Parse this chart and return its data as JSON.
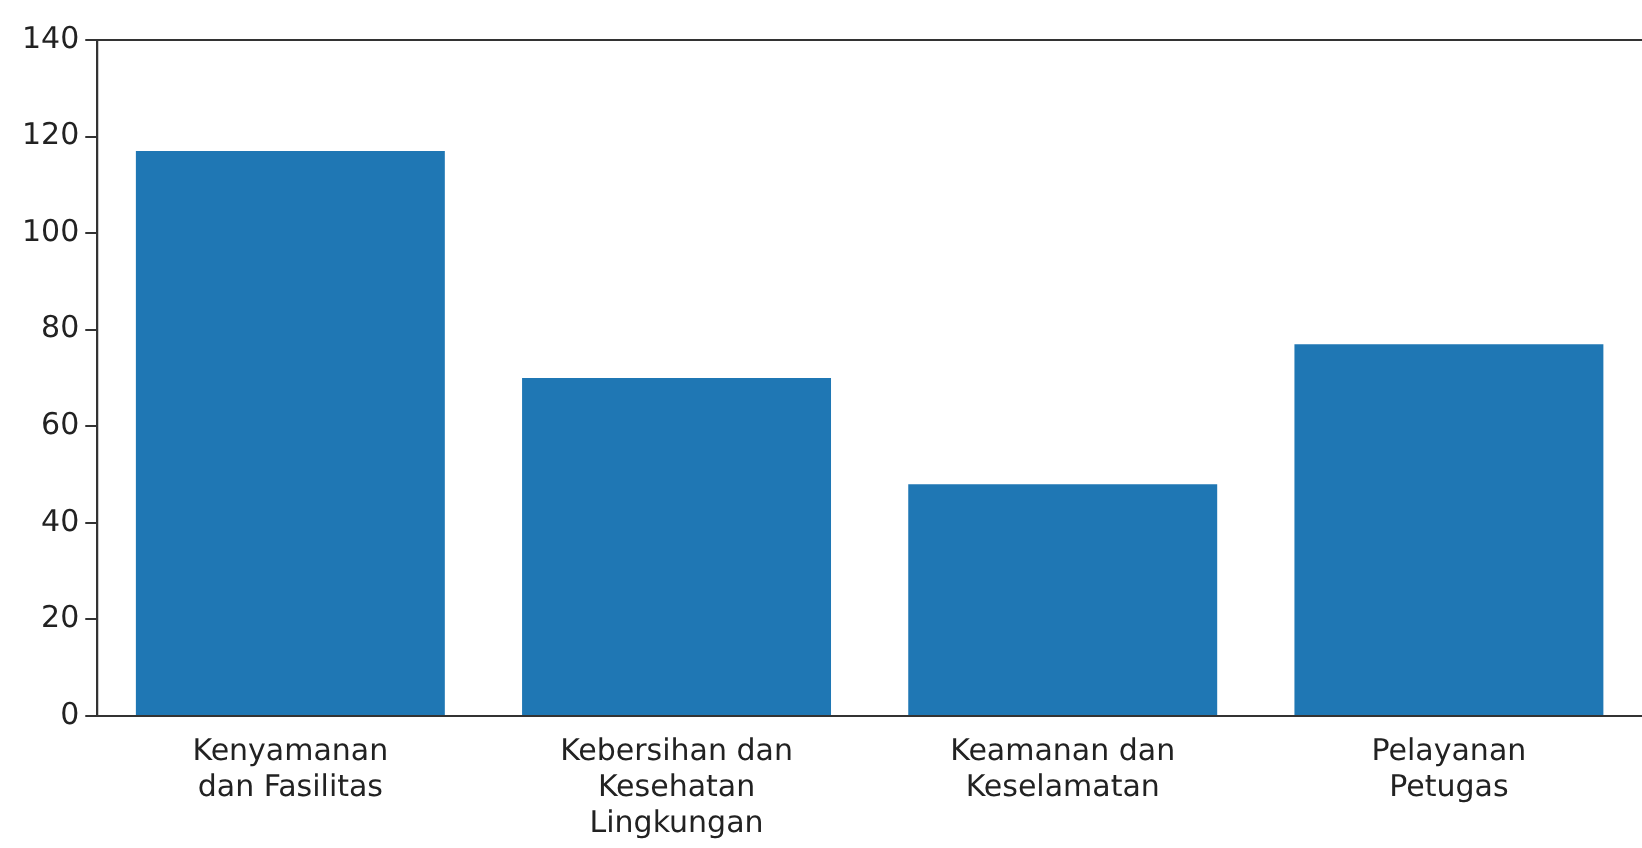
{
  "chart_data": {
    "type": "bar",
    "categories": [
      "Kenyamanan\ndan Fasilitas",
      "Kebersihan dan\nKesehatan\nLingkungan",
      "Keamanan dan\nKeselamatan",
      "Pelayanan\nPetugas"
    ],
    "values": [
      117,
      70,
      48,
      77
    ],
    "color": "#1f77b4",
    "ylim": [
      0,
      140
    ],
    "yticks": [
      0,
      20,
      40,
      60,
      80,
      100,
      120,
      140
    ],
    "grid": false,
    "legend": false
  }
}
